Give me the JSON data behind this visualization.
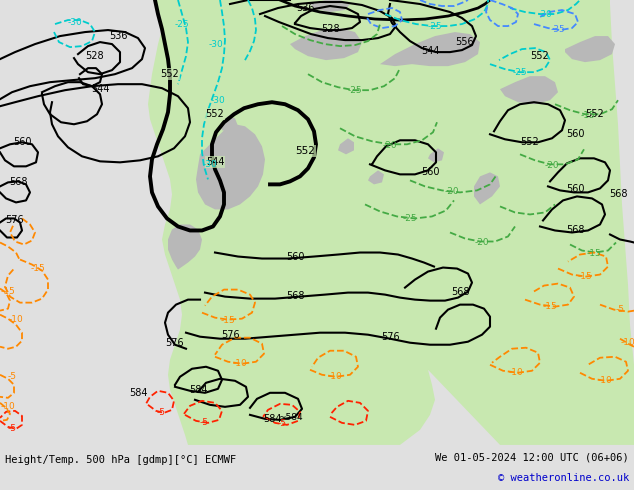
{
  "title_left": "Height/Temp. 500 hPa [gdmp][°C] ECMWF",
  "title_right": "We 01-05-2024 12:00 UTC (06+06)",
  "copyright": "© weatheronline.co.uk",
  "bg_color": "#e0e0e0",
  "land_green_color": "#c8e8b0",
  "land_gray_color": "#b8b8b8",
  "ocean_color": "#e0e0e0",
  "bottom_bar_color": "#f0f0f0",
  "bottom_text_color": "#000000",
  "copyright_color": "#0000cc"
}
